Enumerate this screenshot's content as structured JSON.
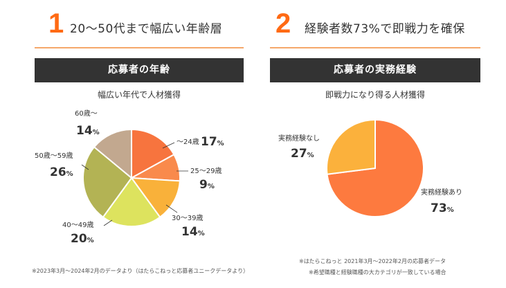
{
  "left": {
    "number": "1",
    "heading": "20～50代まで幅広い年齢層",
    "bar_title": "応募者の年齢",
    "subtitle": "幅広い年代で人材獲得",
    "footnote": "※2023年3月～2024年2月のデータより（はたらこねっと応募者ユニークデータより）"
  },
  "right": {
    "number": "2",
    "heading": "経験者数73%で即戦力を確保",
    "bar_title": "応募者の実務経験",
    "subtitle": "即戦力になり得る人材獲得",
    "footnote_line1": "※はたらこねっと 2021年3月～2022年2月の応募者データ",
    "footnote_line2": "※希望職種と経験職種の大カテゴリが一致している場合"
  },
  "colors": {
    "accent": "#ff6a13",
    "bar_bg": "#333333",
    "rule": "#f5a76a"
  },
  "chart_data": [
    {
      "type": "pie",
      "title": "応募者の年齢",
      "unit": "%",
      "slices": [
        {
          "label": "～24歳",
          "value": 17,
          "color": "#f7743e"
        },
        {
          "label": "25～29歳",
          "value": 9,
          "color": "#f98a4c"
        },
        {
          "label": "30～39歳",
          "value": 14,
          "color": "#f9b13a"
        },
        {
          "label": "40～49歳",
          "value": 20,
          "color": "#dde35e"
        },
        {
          "label": "50歳～59歳",
          "value": 26,
          "color": "#b3b354"
        },
        {
          "label": "60歳～",
          "value": 14,
          "color": "#c2a88f"
        }
      ]
    },
    {
      "type": "pie",
      "title": "応募者の実務経験",
      "unit": "%",
      "slices": [
        {
          "label": "実務経験あり",
          "value": 73,
          "color": "#fd7a3f"
        },
        {
          "label": "実務経験なし",
          "value": 27,
          "color": "#fbb13c"
        }
      ]
    }
  ]
}
